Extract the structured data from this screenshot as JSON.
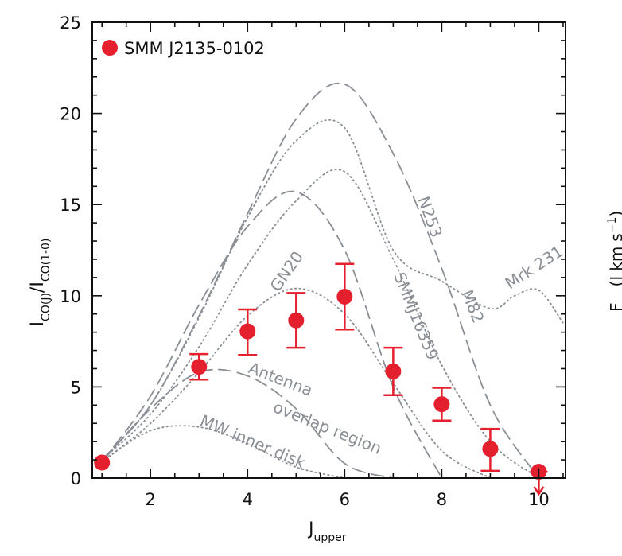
{
  "chart_data": {
    "type": "scatter",
    "title": "",
    "xlabel": "J",
    "xlabel_sub": "upper",
    "ylabel_parts": {
      "i1": "I",
      "s1": "CO(J)",
      "slash": "/",
      "i2": "I",
      "s2": "CO(1-0)"
    },
    "xlim": [
      0.8,
      10.55
    ],
    "ylim": [
      0,
      25
    ],
    "xticks": [
      2,
      4,
      6,
      8,
      10
    ],
    "yticks": [
      0,
      5,
      10,
      15,
      20,
      25
    ],
    "legend": {
      "label": "SMM J2135-0102",
      "marker_color": "#e5202e",
      "position": "top-left"
    },
    "marker_color": "#e5202e",
    "series": [
      {
        "name": "SMM J2135-0102",
        "x": [
          1,
          3,
          4,
          5,
          6,
          7,
          8,
          9,
          10
        ],
        "y": [
          0.85,
          6.1,
          8.05,
          8.65,
          9.95,
          5.85,
          4.05,
          1.6,
          0.35
        ],
        "yerr_low": [
          0.0,
          0.7,
          1.3,
          1.5,
          1.8,
          1.3,
          0.9,
          1.2,
          0.0
        ],
        "yerr_high": [
          0.0,
          0.7,
          1.2,
          1.5,
          1.8,
          1.3,
          0.9,
          1.1,
          0.0
        ],
        "upper_limit_index": 8
      }
    ],
    "models": [
      {
        "name": "N253",
        "label": "N253",
        "style": "dashed",
        "x": [
          1,
          2,
          3,
          4,
          5,
          6,
          7,
          8,
          9,
          10
        ],
        "y": [
          1.0,
          4.0,
          8.9,
          14.5,
          19.7,
          21.6,
          17.8,
          11.5,
          4.0,
          0.0
        ]
      },
      {
        "name": "Mrk 231",
        "label": "Mrk 231",
        "style": "dotted",
        "x": [
          1,
          2,
          3,
          4,
          5,
          6,
          7,
          8,
          9,
          9.5,
          10,
          10.5
        ],
        "y": [
          1.0,
          4.0,
          8.8,
          14.3,
          18.5,
          19.2,
          12.5,
          10.8,
          9.3,
          10.0,
          10.3,
          8.5
        ]
      },
      {
        "name": "M82",
        "label": "M82",
        "style": "dotted",
        "x": [
          1,
          2,
          3,
          4,
          5,
          6,
          7,
          8,
          9,
          10
        ],
        "y": [
          1.0,
          3.5,
          7.2,
          11.7,
          15.2,
          16.8,
          12.0,
          6.2,
          2.0,
          0.0
        ]
      },
      {
        "name": "GN20",
        "label": "GN20",
        "style": "dashed",
        "x": [
          1,
          2,
          3,
          4,
          5,
          6,
          7,
          8
        ],
        "y": [
          0.9,
          4.5,
          9.5,
          13.8,
          15.7,
          12.5,
          5.0,
          0.0
        ]
      },
      {
        "name": "SMMJ16359",
        "label": "SMMJ16359",
        "style": "dotted",
        "x": [
          1,
          2,
          3,
          4,
          5,
          6,
          7,
          8,
          9
        ],
        "y": [
          0.9,
          3.0,
          5.8,
          8.9,
          10.4,
          9.0,
          5.2,
          1.5,
          0.0
        ]
      },
      {
        "name": "Antenna overlap region",
        "label_line1": "Antenna",
        "label_line2": "overlap region",
        "style": "dashed",
        "x": [
          1,
          2,
          3,
          4,
          5,
          6,
          7
        ],
        "y": [
          0.9,
          3.8,
          5.8,
          5.6,
          3.8,
          0.8,
          0.0
        ]
      },
      {
        "name": "MW inner disk",
        "label": "MW inner disk",
        "style": "dotted",
        "x": [
          1,
          2,
          3,
          4,
          5,
          6
        ],
        "y": [
          0.9,
          2.6,
          2.8,
          1.9,
          0.6,
          0.0
        ]
      }
    ],
    "clipped_text": {
      "text": "F",
      "open": "(",
      "unit_parts": [
        "J",
        "km",
        "s",
        "−1",
        ")"
      ]
    }
  }
}
